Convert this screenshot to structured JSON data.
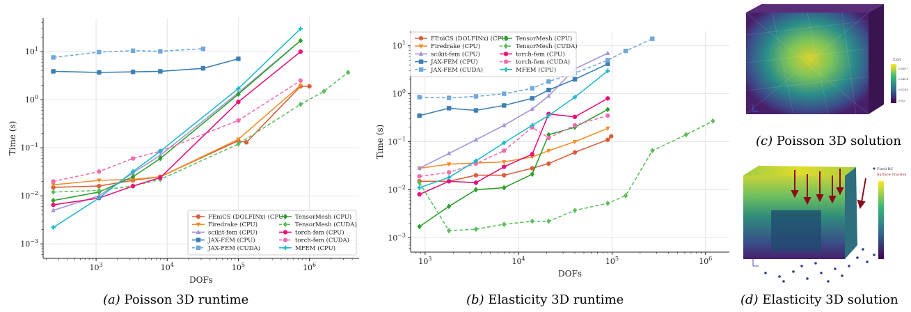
{
  "chart_data": [
    {
      "type": "line",
      "xscale": "log",
      "yscale": "log",
      "xlabel": "DOFs",
      "ylabel": "Time (s)",
      "xlim": [
        180,
        5000000
      ],
      "ylim": [
        0.0005,
        50
      ],
      "xticks": [
        {
          "v": 1000,
          "label": "10^3"
        },
        {
          "v": 10000,
          "label": "10^4"
        },
        {
          "v": 100000,
          "label": "10^5"
        },
        {
          "v": 1000000,
          "label": "10^6"
        }
      ],
      "yticks": [
        {
          "v": 0.001,
          "label": "10^-3"
        },
        {
          "v": 0.01,
          "label": "10^-2"
        },
        {
          "v": 0.1,
          "label": "10^-1"
        },
        {
          "v": 1,
          "label": "10^0"
        },
        {
          "v": 10,
          "label": "10^1"
        }
      ],
      "grid": true,
      "legend": {
        "placement": "lower-right",
        "columns": 2
      },
      "series": [
        {
          "name": "FEniCS (DOLFINx) (CPU)",
          "color": "#d95f3b",
          "dashed": false,
          "marker": "circle",
          "x": [
            250,
            1100,
            3300,
            8000,
            100000,
            130000,
            750000,
            1000000
          ],
          "y": [
            0.015,
            0.016,
            0.021,
            0.025,
            0.14,
            0.13,
            1.9,
            1.9
          ]
        },
        {
          "name": "Firedrake (CPU)",
          "color": "#f28e2b",
          "dashed": false,
          "marker": "triangle-down",
          "x": [
            250,
            1100,
            3300,
            8000,
            100000,
            750000
          ],
          "y": [
            0.017,
            0.021,
            0.022,
            0.025,
            0.15,
            2.0
          ]
        },
        {
          "name": "scikit-fem (CPU)",
          "color": "#a593d9",
          "dashed": false,
          "marker": "triangle-up",
          "x": [
            250,
            1100,
            3300,
            8000,
            100000,
            750000
          ],
          "y": [
            0.005,
            0.01,
            0.03,
            0.07,
            1.4,
            17
          ]
        },
        {
          "name": "JAX-FEM (CPU)",
          "color": "#3b7fb5",
          "dashed": false,
          "marker": "square",
          "x": [
            250,
            1100,
            3300,
            8000,
            32000,
            100000
          ],
          "y": [
            3.9,
            3.7,
            3.8,
            3.9,
            4.5,
            7.1
          ]
        },
        {
          "name": "JAX-FEM (CUDA)",
          "color": "#6fa8dc",
          "dashed": true,
          "marker": "square",
          "x": [
            250,
            1100,
            3300,
            8000,
            32000
          ],
          "y": [
            7.6,
            9.8,
            10.5,
            10.2,
            11.5
          ]
        },
        {
          "name": "TensorMesh (CPU)",
          "color": "#2ca02c",
          "dashed": false,
          "marker": "diamond",
          "x": [
            250,
            1100,
            3300,
            8000,
            100000,
            750000
          ],
          "y": [
            0.008,
            0.012,
            0.025,
            0.06,
            1.3,
            17
          ]
        },
        {
          "name": "TensorMesh (CUDA)",
          "color": "#5cbf5c",
          "dashed": true,
          "marker": "diamond",
          "x": [
            250,
            1100,
            3300,
            8000,
            100000,
            750000,
            1600000,
            3500000
          ],
          "y": [
            0.012,
            0.013,
            0.016,
            0.022,
            0.12,
            0.8,
            1.5,
            3.7
          ]
        },
        {
          "name": "torch-fem (CPU)",
          "color": "#e8127a",
          "dashed": false,
          "marker": "circle",
          "x": [
            250,
            1100,
            3300,
            8000,
            100000,
            750000
          ],
          "y": [
            0.0065,
            0.009,
            0.016,
            0.024,
            0.9,
            10
          ]
        },
        {
          "name": "torch-fem (CUDA)",
          "color": "#f06cb0",
          "dashed": true,
          "marker": "circle",
          "x": [
            250,
            1100,
            3300,
            8000,
            100000,
            750000
          ],
          "y": [
            0.02,
            0.032,
            0.06,
            0.085,
            0.37,
            2.5
          ]
        },
        {
          "name": "MFEM (CPU)",
          "color": "#21b9c9",
          "dashed": false,
          "marker": "plus",
          "x": [
            250,
            1100,
            3300,
            8000,
            100000,
            750000
          ],
          "y": [
            0.0022,
            0.009,
            0.032,
            0.085,
            1.7,
            30
          ]
        }
      ]
    },
    {
      "type": "line",
      "xscale": "log",
      "yscale": "log",
      "xlabel": "DOFs",
      "ylabel": "Time (s)",
      "xlim": [
        700,
        1800000
      ],
      "ylim": [
        0.0005,
        20
      ],
      "xticks": [
        {
          "v": 1000,
          "label": "10^3"
        },
        {
          "v": 10000,
          "label": "10^4"
        },
        {
          "v": 100000,
          "label": "10^5"
        },
        {
          "v": 1000000,
          "label": "10^6"
        }
      ],
      "yticks": [
        {
          "v": 0.001,
          "label": "10^-3"
        },
        {
          "v": 0.01,
          "label": "10^-2"
        },
        {
          "v": 0.1,
          "label": "10^-1"
        },
        {
          "v": 1,
          "label": "10^0"
        },
        {
          "v": 10,
          "label": "10^1"
        }
      ],
      "grid": true,
      "legend": {
        "placement": "top-left",
        "columns": 2
      },
      "series": [
        {
          "name": "FEniCS (DOLFINx) (CPU)",
          "color": "#d95f3b",
          "dashed": false,
          "marker": "circle",
          "x": [
            870,
            1800,
            3500,
            7000,
            14000,
            21000,
            40000,
            90000,
            98000
          ],
          "y": [
            0.015,
            0.015,
            0.02,
            0.02,
            0.028,
            0.035,
            0.06,
            0.11,
            0.13
          ]
        },
        {
          "name": "Firedrake (CPU)",
          "color": "#f28e2b",
          "dashed": false,
          "marker": "triangle-down",
          "x": [
            870,
            1800,
            3500,
            7000,
            14000,
            21000,
            40000,
            90000
          ],
          "y": [
            0.028,
            0.034,
            0.036,
            0.038,
            0.048,
            0.065,
            0.1,
            0.19
          ]
        },
        {
          "name": "scikit-fem (CPU)",
          "color": "#a593d9",
          "dashed": false,
          "marker": "triangle-up",
          "x": [
            870,
            1800,
            3500,
            7000,
            14000,
            21000,
            40000,
            90000
          ],
          "y": [
            0.028,
            0.057,
            0.11,
            0.22,
            0.48,
            0.9,
            3.3,
            7.0
          ]
        },
        {
          "name": "JAX-FEM (CPU)",
          "color": "#3b7fb5",
          "dashed": false,
          "marker": "square",
          "x": [
            870,
            1800,
            3500,
            7000,
            14000,
            21000,
            40000,
            90000
          ],
          "y": [
            0.35,
            0.5,
            0.45,
            0.57,
            0.8,
            1.2,
            2.0,
            4.2
          ]
        },
        {
          "name": "JAX-FEM (CUDA)",
          "color": "#6fa8dc",
          "dashed": true,
          "marker": "square",
          "x": [
            870,
            1800,
            3500,
            7000,
            14000,
            21000,
            40000,
            90000,
            140000,
            270000
          ],
          "y": [
            0.85,
            0.82,
            0.88,
            1.0,
            1.3,
            1.8,
            2.7,
            5.0,
            7.8,
            14
          ]
        },
        {
          "name": "TensorMesh (CPU)",
          "color": "#2ca02c",
          "dashed": false,
          "marker": "diamond",
          "x": [
            870,
            1800,
            3500,
            7000,
            14000,
            21000,
            40000,
            90000
          ],
          "y": [
            0.0017,
            0.0045,
            0.01,
            0.011,
            0.021,
            0.14,
            0.2,
            0.47
          ]
        },
        {
          "name": "TensorMesh (CUDA)",
          "color": "#5cbf5c",
          "dashed": true,
          "marker": "diamond",
          "x": [
            870,
            1800,
            3500,
            7000,
            14000,
            21000,
            40000,
            90000,
            140000,
            270000,
            620000,
            1200000
          ],
          "y": [
            0.014,
            0.0014,
            0.0015,
            0.0019,
            0.0022,
            0.0022,
            0.0037,
            0.0052,
            0.0075,
            0.065,
            0.14,
            0.27
          ]
        },
        {
          "name": "torch-fem (CPU)",
          "color": "#e8127a",
          "dashed": false,
          "marker": "circle",
          "x": [
            870,
            1800,
            3500,
            7000,
            14000,
            21000,
            40000,
            90000
          ],
          "y": [
            0.008,
            0.015,
            0.014,
            0.03,
            0.055,
            0.38,
            0.33,
            0.8
          ]
        },
        {
          "name": "torch-fem (CUDA)",
          "color": "#f06cb0",
          "dashed": true,
          "marker": "circle",
          "x": [
            870,
            1800,
            3500,
            7000,
            14000,
            21000,
            40000,
            90000
          ],
          "y": [
            0.019,
            0.023,
            0.035,
            0.065,
            0.2,
            0.12,
            0.22,
            0.35
          ]
        },
        {
          "name": "MFEM (CPU)",
          "color": "#21b9c9",
          "dashed": false,
          "marker": "plus",
          "x": [
            870,
            1800,
            3500,
            7000,
            14000,
            21000,
            40000,
            90000
          ],
          "y": [
            0.011,
            0.018,
            0.04,
            0.095,
            0.22,
            0.35,
            0.85,
            3.0
          ]
        }
      ]
    }
  ],
  "captions": {
    "a": {
      "tag": "(a)",
      "text": "Poisson 3D runtime"
    },
    "b": {
      "tag": "(b)",
      "text": "Elasticity 3D runtime"
    },
    "c": {
      "tag": "(c)",
      "text": "Poisson 3D solution"
    },
    "d": {
      "tag": "(d)",
      "text": "Elasticity 3D solution"
    }
  },
  "renders": {
    "poisson": {
      "colorbar_title": "Z.Ωv",
      "colorbar_ticks": [
        "0.0677",
        "0.0478",
        "0.0239",
        "0.00"
      ]
    },
    "elasticity": {
      "legend": [
        "Fixed BC",
        "Surface Traction"
      ]
    }
  }
}
